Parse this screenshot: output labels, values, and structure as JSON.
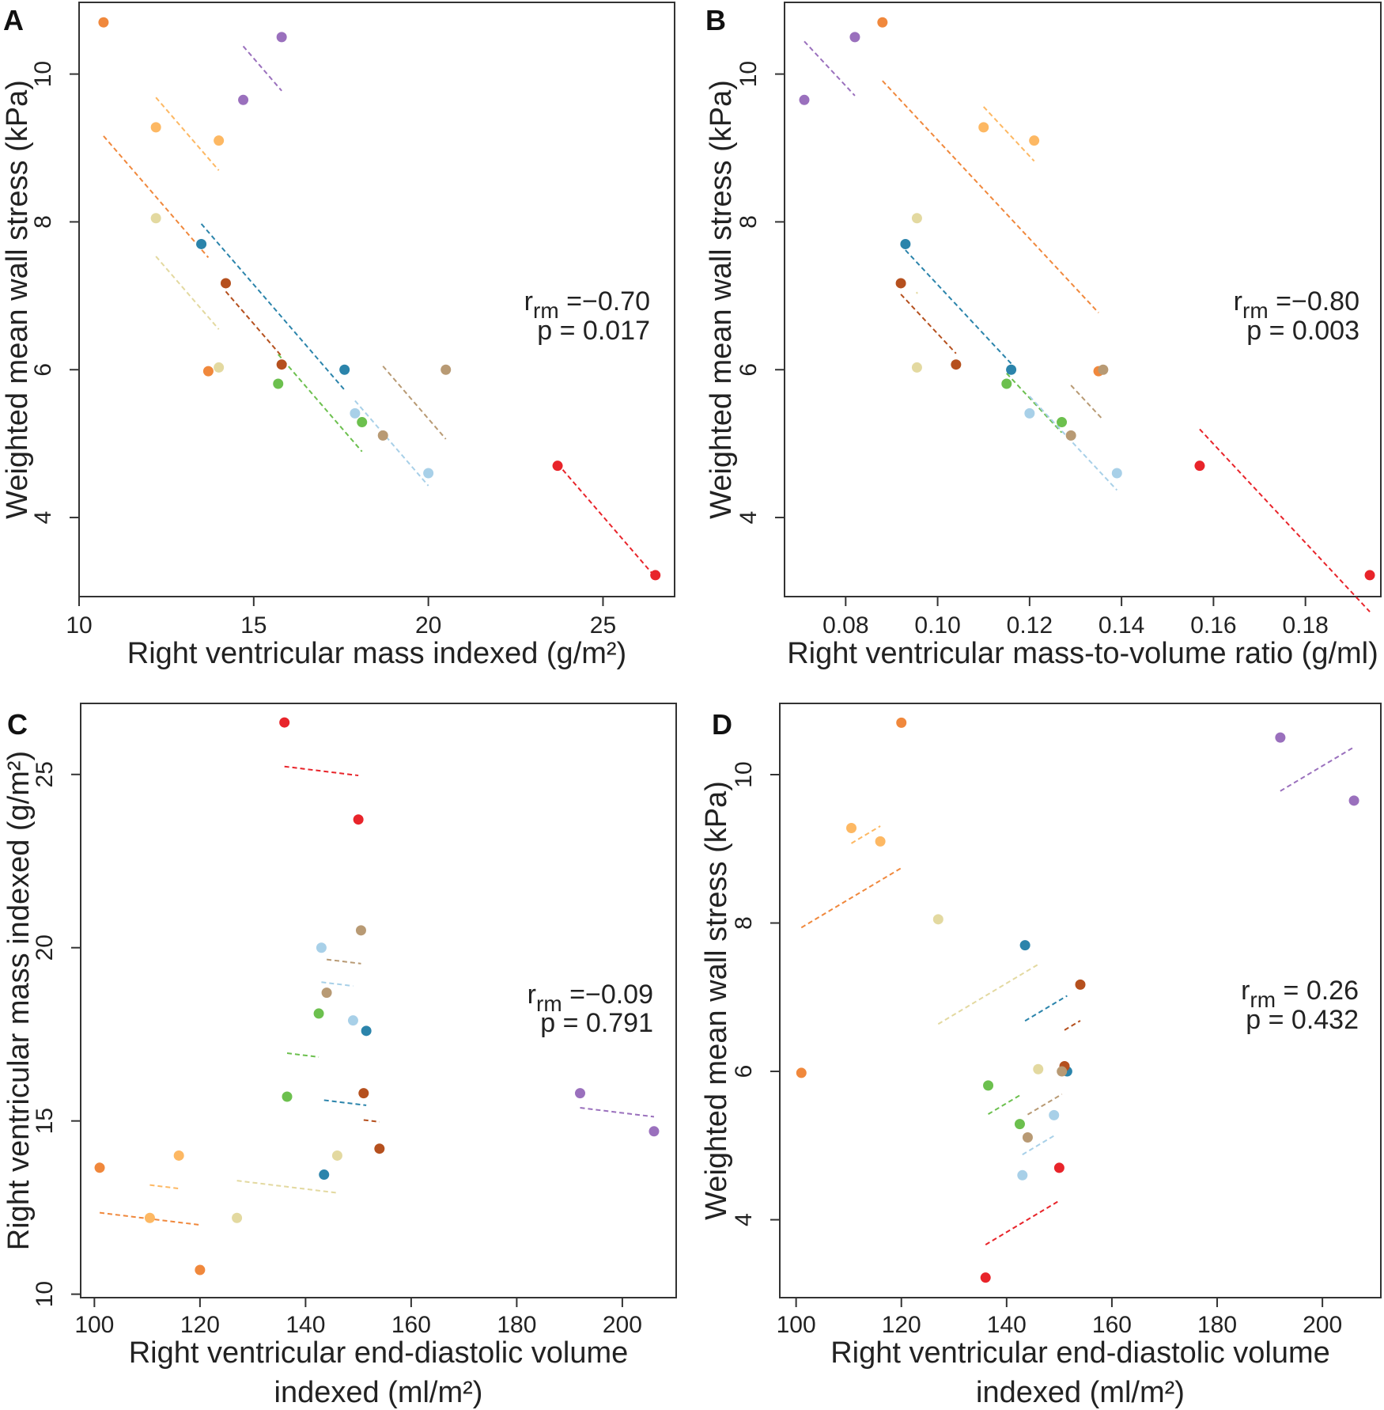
{
  "colors": {
    "orange": "#F0883C",
    "light_orange": "#FDB863",
    "purple": "#9A70BD",
    "beige": "#E3D9A0",
    "teal": "#2B84AB",
    "brown": "#B5501E",
    "green": "#6CC04E",
    "light_blue": "#A8D0E8",
    "tan": "#B89A74",
    "red": "#E8242A"
  },
  "chart_data": [
    {
      "panel": "A",
      "type": "scatter",
      "xlabel": [
        "Right ventricular mass indexed (g/m²)"
      ],
      "ylabel": "Weighted mean wall stress (kPa)",
      "xlim": [
        10,
        27.05
      ],
      "ylim": [
        2.93,
        10.97
      ],
      "xticks": [
        10,
        15,
        20,
        25
      ],
      "yticks": [
        4,
        6,
        8,
        10
      ],
      "annotation": {
        "r": "r",
        "r_sub": "rm",
        "r_value": " =−0.70",
        "p": "p =  0.017"
      },
      "series": [
        {
          "color": "orange",
          "points": [
            [
              10.7,
              10.7
            ],
            [
              13.7,
              5.98
            ]
          ]
        },
        {
          "color": "light_orange",
          "points": [
            [
              12.2,
              9.28
            ],
            [
              14.0,
              9.1
            ]
          ]
        },
        {
          "color": "purple",
          "points": [
            [
              14.7,
              9.65
            ],
            [
              15.8,
              10.5
            ]
          ]
        },
        {
          "color": "beige",
          "points": [
            [
              12.2,
              8.05
            ],
            [
              14.0,
              6.03
            ]
          ]
        },
        {
          "color": "teal",
          "points": [
            [
              13.5,
              7.7
            ],
            [
              17.6,
              6.0
            ]
          ]
        },
        {
          "color": "brown",
          "points": [
            [
              14.2,
              7.17
            ],
            [
              15.8,
              6.07
            ]
          ]
        },
        {
          "color": "green",
          "points": [
            [
              15.7,
              5.81
            ],
            [
              18.1,
              5.29
            ]
          ]
        },
        {
          "color": "light_blue",
          "points": [
            [
              17.9,
              5.41
            ],
            [
              20.0,
              4.6
            ]
          ]
        },
        {
          "color": "tan",
          "points": [
            [
              18.7,
              5.11
            ],
            [
              20.5,
              6.0
            ]
          ]
        },
        {
          "color": "red",
          "points": [
            [
              23.7,
              4.7
            ],
            [
              26.5,
              3.22
            ]
          ]
        }
      ]
    },
    {
      "panel": "B",
      "type": "scatter",
      "xlabel": [
        "Right ventricular mass-to-volume ratio (g/ml)"
      ],
      "ylabel": "Weighted mean wall stress (kPa)",
      "xlim": [
        0.0667,
        0.1964
      ],
      "ylim": [
        2.93,
        10.97
      ],
      "xticks": [
        0.08,
        0.1,
        0.12,
        0.14,
        0.16,
        0.18
      ],
      "xtick_labels": [
        "0.08",
        "0.10",
        "0.12",
        "0.14",
        "0.16",
        "0.18"
      ],
      "yticks": [
        4,
        6,
        8,
        10
      ],
      "annotation": {
        "r": "r",
        "r_sub": "rm",
        "r_value": " =−0.80",
        "p": "p =  0.003"
      },
      "series": [
        {
          "color": "orange",
          "points": [
            [
              0.088,
              10.7
            ],
            [
              0.135,
              5.98
            ]
          ]
        },
        {
          "color": "light_orange",
          "points": [
            [
              0.11,
              9.28
            ],
            [
              0.121,
              9.1
            ]
          ]
        },
        {
          "color": "purple",
          "points": [
            [
              0.071,
              9.65
            ],
            [
              0.082,
              10.5
            ]
          ]
        },
        {
          "color": "beige",
          "points": [
            [
              0.0955,
              8.05
            ],
            [
              0.0955,
              6.03
            ]
          ]
        },
        {
          "color": "teal",
          "points": [
            [
              0.093,
              7.7
            ],
            [
              0.116,
              6.0
            ]
          ]
        },
        {
          "color": "brown",
          "points": [
            [
              0.092,
              7.17
            ],
            [
              0.104,
              6.07
            ]
          ]
        },
        {
          "color": "green",
          "points": [
            [
              0.115,
              5.81
            ],
            [
              0.127,
              5.29
            ]
          ]
        },
        {
          "color": "light_blue",
          "points": [
            [
              0.12,
              5.41
            ],
            [
              0.139,
              4.6
            ]
          ]
        },
        {
          "color": "tan",
          "points": [
            [
              0.129,
              5.11
            ],
            [
              0.136,
              6.0
            ]
          ]
        },
        {
          "color": "red",
          "points": [
            [
              0.157,
              4.7
            ],
            [
              0.194,
              3.22
            ]
          ]
        }
      ]
    },
    {
      "panel": "C",
      "type": "scatter",
      "xlabel": [
        "Right ventricular end-diastolic volume",
        "indexed (ml/m²)"
      ],
      "ylabel": "Right ventricular mass indexed (g/m²)",
      "xlim": [
        97.4,
        210.2
      ],
      "ylim": [
        9.9,
        27.05
      ],
      "xticks": [
        100,
        120,
        140,
        160,
        180,
        200
      ],
      "yticks": [
        10,
        15,
        20,
        25
      ],
      "annotation": {
        "r": "r",
        "r_sub": "rm",
        "r_value": " =−0.09",
        "p": "p =  0.791"
      },
      "series": [
        {
          "color": "orange",
          "points": [
            [
              120,
              10.7
            ],
            [
              101,
              13.65
            ]
          ]
        },
        {
          "color": "light_orange",
          "points": [
            [
              110.5,
              12.2
            ],
            [
              116,
              14.0
            ]
          ]
        },
        {
          "color": "purple",
          "points": [
            [
              206,
              14.7
            ],
            [
              192,
              15.8
            ]
          ]
        },
        {
          "color": "beige",
          "points": [
            [
              127,
              12.2
            ],
            [
              146,
              14.0
            ]
          ]
        },
        {
          "color": "teal",
          "points": [
            [
              143.5,
              13.45
            ],
            [
              151.5,
              17.6
            ]
          ]
        },
        {
          "color": "brown",
          "points": [
            [
              154,
              14.2
            ],
            [
              151,
              15.8
            ]
          ]
        },
        {
          "color": "green",
          "points": [
            [
              136.5,
              15.7
            ],
            [
              142.5,
              18.1
            ]
          ]
        },
        {
          "color": "light_blue",
          "points": [
            [
              149,
              17.9
            ],
            [
              143,
              20.0
            ]
          ]
        },
        {
          "color": "tan",
          "points": [
            [
              144,
              18.7
            ],
            [
              150.5,
              20.5
            ]
          ]
        },
        {
          "color": "red",
          "points": [
            [
              150,
              23.7
            ],
            [
              136,
              26.5
            ]
          ]
        }
      ]
    },
    {
      "panel": "D",
      "type": "scatter",
      "xlabel": [
        "Right ventricular end-diastolic volume",
        "indexed (ml/m²)"
      ],
      "ylabel": "Weighted mean wall stress (kPa)",
      "xlim": [
        96.9,
        211.1
      ],
      "ylim": [
        2.95,
        10.96
      ],
      "xticks": [
        100,
        120,
        140,
        160,
        180,
        200
      ],
      "yticks": [
        4,
        6,
        8,
        10
      ],
      "annotation": {
        "r": "r",
        "r_sub": "rm",
        "r_value": " = 0.26",
        "p": "p =  0.432"
      },
      "series": [
        {
          "color": "orange",
          "points": [
            [
              120,
              10.7
            ],
            [
              101,
              5.98
            ]
          ]
        },
        {
          "color": "light_orange",
          "points": [
            [
              110.5,
              9.28
            ],
            [
              116,
              9.1
            ]
          ]
        },
        {
          "color": "purple",
          "points": [
            [
              206,
              9.65
            ],
            [
              192,
              10.5
            ]
          ]
        },
        {
          "color": "beige",
          "points": [
            [
              127,
              8.05
            ],
            [
              146,
              6.03
            ]
          ]
        },
        {
          "color": "teal",
          "points": [
            [
              143.5,
              7.7
            ],
            [
              151.5,
              6.0
            ]
          ]
        },
        {
          "color": "brown",
          "points": [
            [
              154,
              7.17
            ],
            [
              151,
              6.07
            ]
          ]
        },
        {
          "color": "green",
          "points": [
            [
              136.5,
              5.81
            ],
            [
              142.5,
              5.29
            ]
          ]
        },
        {
          "color": "light_blue",
          "points": [
            [
              149,
              5.41
            ],
            [
              143,
              4.6
            ]
          ]
        },
        {
          "color": "tan",
          "points": [
            [
              144,
              5.11
            ],
            [
              150.5,
              6.0
            ]
          ]
        },
        {
          "color": "red",
          "points": [
            [
              150,
              4.7
            ],
            [
              136,
              3.22
            ]
          ]
        }
      ]
    }
  ]
}
